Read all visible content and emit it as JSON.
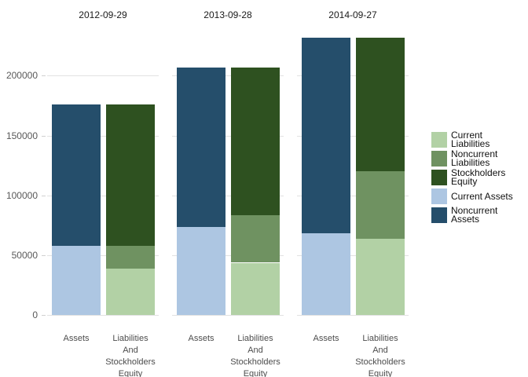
{
  "figure": {
    "background": "#ffffff"
  },
  "chart_data": {
    "type": "bar",
    "stacked": true,
    "grid": true,
    "legend_position": "right",
    "title": "",
    "xlabel": "",
    "ylabel": "",
    "y_axis": {
      "ticks": [
        "0",
        "50000",
        "100000",
        "150000",
        "200000"
      ],
      "tick_values": [
        0,
        50000,
        100000,
        150000,
        200000
      ],
      "ylim": [
        0,
        237000
      ]
    },
    "categories": [
      "Assets",
      "Liabilities And Stockholders Equity"
    ],
    "x_tick_display": [
      "Assets",
      "Liabilities\nAnd\nStockholders\nEquity"
    ],
    "panels": [
      {
        "title": "2012-09-29",
        "bars": [
          {
            "category": "Assets",
            "segments": [
              {
                "series": "Current Assets",
                "value": 57650
              },
              {
                "series": "Noncurrent Assets",
                "value": 118410
              }
            ]
          },
          {
            "category": "Liabilities And Stockholders Equity",
            "segments": [
              {
                "series": "Current Liabilities",
                "value": 38540
              },
              {
                "series": "Noncurrent Liabilities",
                "value": 19310
              },
              {
                "series": "Stockholders Equity",
                "value": 118210
              }
            ]
          }
        ]
      },
      {
        "title": "2013-09-28",
        "bars": [
          {
            "category": "Assets",
            "segments": [
              {
                "series": "Current Assets",
                "value": 73290
              },
              {
                "series": "Noncurrent Assets",
                "value": 133710
              }
            ]
          },
          {
            "category": "Liabilities And Stockholders Equity",
            "segments": [
              {
                "series": "Current Liabilities",
                "value": 43660
              },
              {
                "series": "Noncurrent Liabilities",
                "value": 39790
              },
              {
                "series": "Stockholders Equity",
                "value": 123550
              }
            ]
          }
        ]
      },
      {
        "title": "2014-09-27",
        "bars": [
          {
            "category": "Assets",
            "segments": [
              {
                "series": "Current Assets",
                "value": 68530
              },
              {
                "series": "Noncurrent Assets",
                "value": 163310
              }
            ]
          },
          {
            "category": "Liabilities And Stockholders Equity",
            "segments": [
              {
                "series": "Current Liabilities",
                "value": 63450
              },
              {
                "series": "Noncurrent Liabilities",
                "value": 56840
              },
              {
                "series": "Stockholders Equity",
                "value": 111550
              }
            ]
          }
        ]
      }
    ],
    "series_colors": {
      "Current Liabilities": "#b2d1a5",
      "Noncurrent Liabilities": "#6f9261",
      "Stockholders Equity": "#2e5120",
      "Current Assets": "#adc6e2",
      "Noncurrent Assets": "#254e6b"
    },
    "legend": [
      {
        "label": "Current\nLiabilities",
        "series": "Current Liabilities"
      },
      {
        "label": "Noncurrent\nLiabilities",
        "series": "Noncurrent Liabilities"
      },
      {
        "label": "Stockholders\nEquity",
        "series": "Stockholders Equity"
      },
      {
        "label": "Current Assets",
        "series": "Current Assets"
      },
      {
        "label": "Noncurrent\nAssets",
        "series": "Noncurrent Assets"
      }
    ]
  }
}
